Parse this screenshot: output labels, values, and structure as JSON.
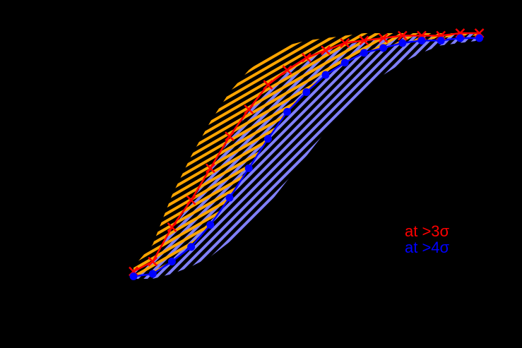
{
  "chart_data": {
    "type": "line",
    "title": "",
    "xlabel": "",
    "ylabel": "",
    "background": "#000000",
    "x": [
      1,
      2,
      3,
      4,
      5,
      6,
      7,
      8,
      9,
      10,
      11,
      12,
      13,
      14,
      15,
      16,
      17,
      18,
      19
    ],
    "ylim": [
      0,
      1
    ],
    "grid": false,
    "legend_position": "lower right (inside plot)",
    "series": [
      {
        "name": "at >3σ",
        "color": "#ff0000",
        "marker": "cross",
        "values": [
          0.03,
          0.07,
          0.21,
          0.32,
          0.45,
          0.58,
          0.69,
          0.79,
          0.85,
          0.9,
          0.93,
          0.96,
          0.97,
          0.98,
          0.99,
          0.99,
          0.99,
          1.0,
          1.0
        ],
        "band": {
          "color": "#ffa500",
          "hatch": "diagonal-up",
          "upper": [
            0.05,
            0.14,
            0.34,
            0.5,
            0.64,
            0.76,
            0.85,
            0.91,
            0.95,
            0.97,
            0.98,
            0.99,
            1.0,
            1.0,
            1.0,
            1.0,
            1.0,
            1.0,
            1.0
          ],
          "lower": [
            0.0,
            0.02,
            0.08,
            0.14,
            0.22,
            0.33,
            0.45,
            0.57,
            0.68,
            0.76,
            0.83,
            0.88,
            0.92,
            0.94,
            0.96,
            0.97,
            0.98,
            0.99,
            0.99
          ]
        }
      },
      {
        "name": "at >4σ",
        "color": "#0000ff",
        "marker": "circle",
        "values": [
          0.01,
          0.02,
          0.07,
          0.13,
          0.22,
          0.33,
          0.45,
          0.57,
          0.68,
          0.76,
          0.83,
          0.88,
          0.92,
          0.94,
          0.96,
          0.97,
          0.97,
          0.98,
          0.98
        ],
        "band": {
          "color": "#8080ff",
          "hatch": "diagonal-down",
          "upper": [
            0.03,
            0.07,
            0.2,
            0.31,
            0.44,
            0.57,
            0.68,
            0.78,
            0.85,
            0.9,
            0.93,
            0.95,
            0.97,
            0.98,
            0.99,
            0.99,
            0.99,
            1.0,
            1.0
          ],
          "lower": [
            0.0,
            0.0,
            0.02,
            0.05,
            0.09,
            0.15,
            0.22,
            0.3,
            0.4,
            0.5,
            0.6,
            0.69,
            0.77,
            0.83,
            0.88,
            0.92,
            0.95,
            0.96,
            0.97
          ]
        }
      }
    ]
  },
  "legend": {
    "entries": [
      {
        "label": "at >3σ",
        "color": "#ff0000"
      },
      {
        "label": "at >4σ",
        "color": "#0000ff"
      }
    ]
  }
}
